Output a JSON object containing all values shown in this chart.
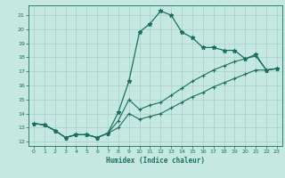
{
  "xlabel": "Humidex (Indice chaleur)",
  "bg_color": "#c5e8e0",
  "grid_color": "#a8cfc8",
  "line_color": "#1a7060",
  "xlim": [
    -0.5,
    23.5
  ],
  "ylim": [
    11.7,
    21.7
  ],
  "xticks": [
    0,
    1,
    2,
    3,
    4,
    5,
    6,
    7,
    8,
    9,
    10,
    11,
    12,
    13,
    14,
    15,
    16,
    17,
    18,
    19,
    20,
    21,
    22,
    23
  ],
  "yticks": [
    12,
    13,
    14,
    15,
    16,
    17,
    18,
    19,
    20,
    21
  ],
  "series": [
    {
      "x": [
        0,
        1,
        2,
        3,
        4,
        5,
        6,
        7,
        8,
        9,
        10,
        11,
        12,
        13,
        14,
        15,
        16,
        17,
        18,
        19,
        20,
        21,
        22,
        23
      ],
      "y": [
        13.3,
        13.2,
        12.8,
        12.3,
        12.5,
        12.5,
        12.3,
        12.6,
        14.1,
        16.3,
        19.8,
        20.4,
        21.3,
        21.0,
        19.8,
        19.4,
        18.7,
        18.7,
        18.5,
        18.5,
        17.9,
        18.2,
        17.1,
        17.2
      ],
      "marker": "*",
      "markersize": 3.5,
      "linewidth": 0.9
    },
    {
      "x": [
        0,
        1,
        2,
        3,
        4,
        5,
        6,
        7,
        8,
        9,
        10,
        11,
        12,
        13,
        14,
        15,
        16,
        17,
        18,
        19,
        20,
        21,
        22,
        23
      ],
      "y": [
        13.3,
        13.2,
        12.8,
        12.3,
        12.5,
        12.5,
        12.3,
        12.6,
        13.5,
        15.0,
        14.3,
        14.6,
        14.8,
        15.3,
        15.8,
        16.3,
        16.7,
        17.1,
        17.4,
        17.7,
        17.9,
        18.1,
        17.1,
        17.2
      ],
      "marker": "+",
      "markersize": 3.0,
      "linewidth": 0.8
    },
    {
      "x": [
        0,
        1,
        2,
        3,
        4,
        5,
        6,
        7,
        8,
        9,
        10,
        11,
        12,
        13,
        14,
        15,
        16,
        17,
        18,
        19,
        20,
        21,
        22,
        23
      ],
      "y": [
        13.3,
        13.2,
        12.8,
        12.3,
        12.5,
        12.5,
        12.3,
        12.6,
        13.0,
        14.0,
        13.6,
        13.8,
        14.0,
        14.4,
        14.8,
        15.2,
        15.5,
        15.9,
        16.2,
        16.5,
        16.8,
        17.1,
        17.1,
        17.2
      ],
      "marker": "+",
      "markersize": 3.0,
      "linewidth": 0.8
    }
  ]
}
